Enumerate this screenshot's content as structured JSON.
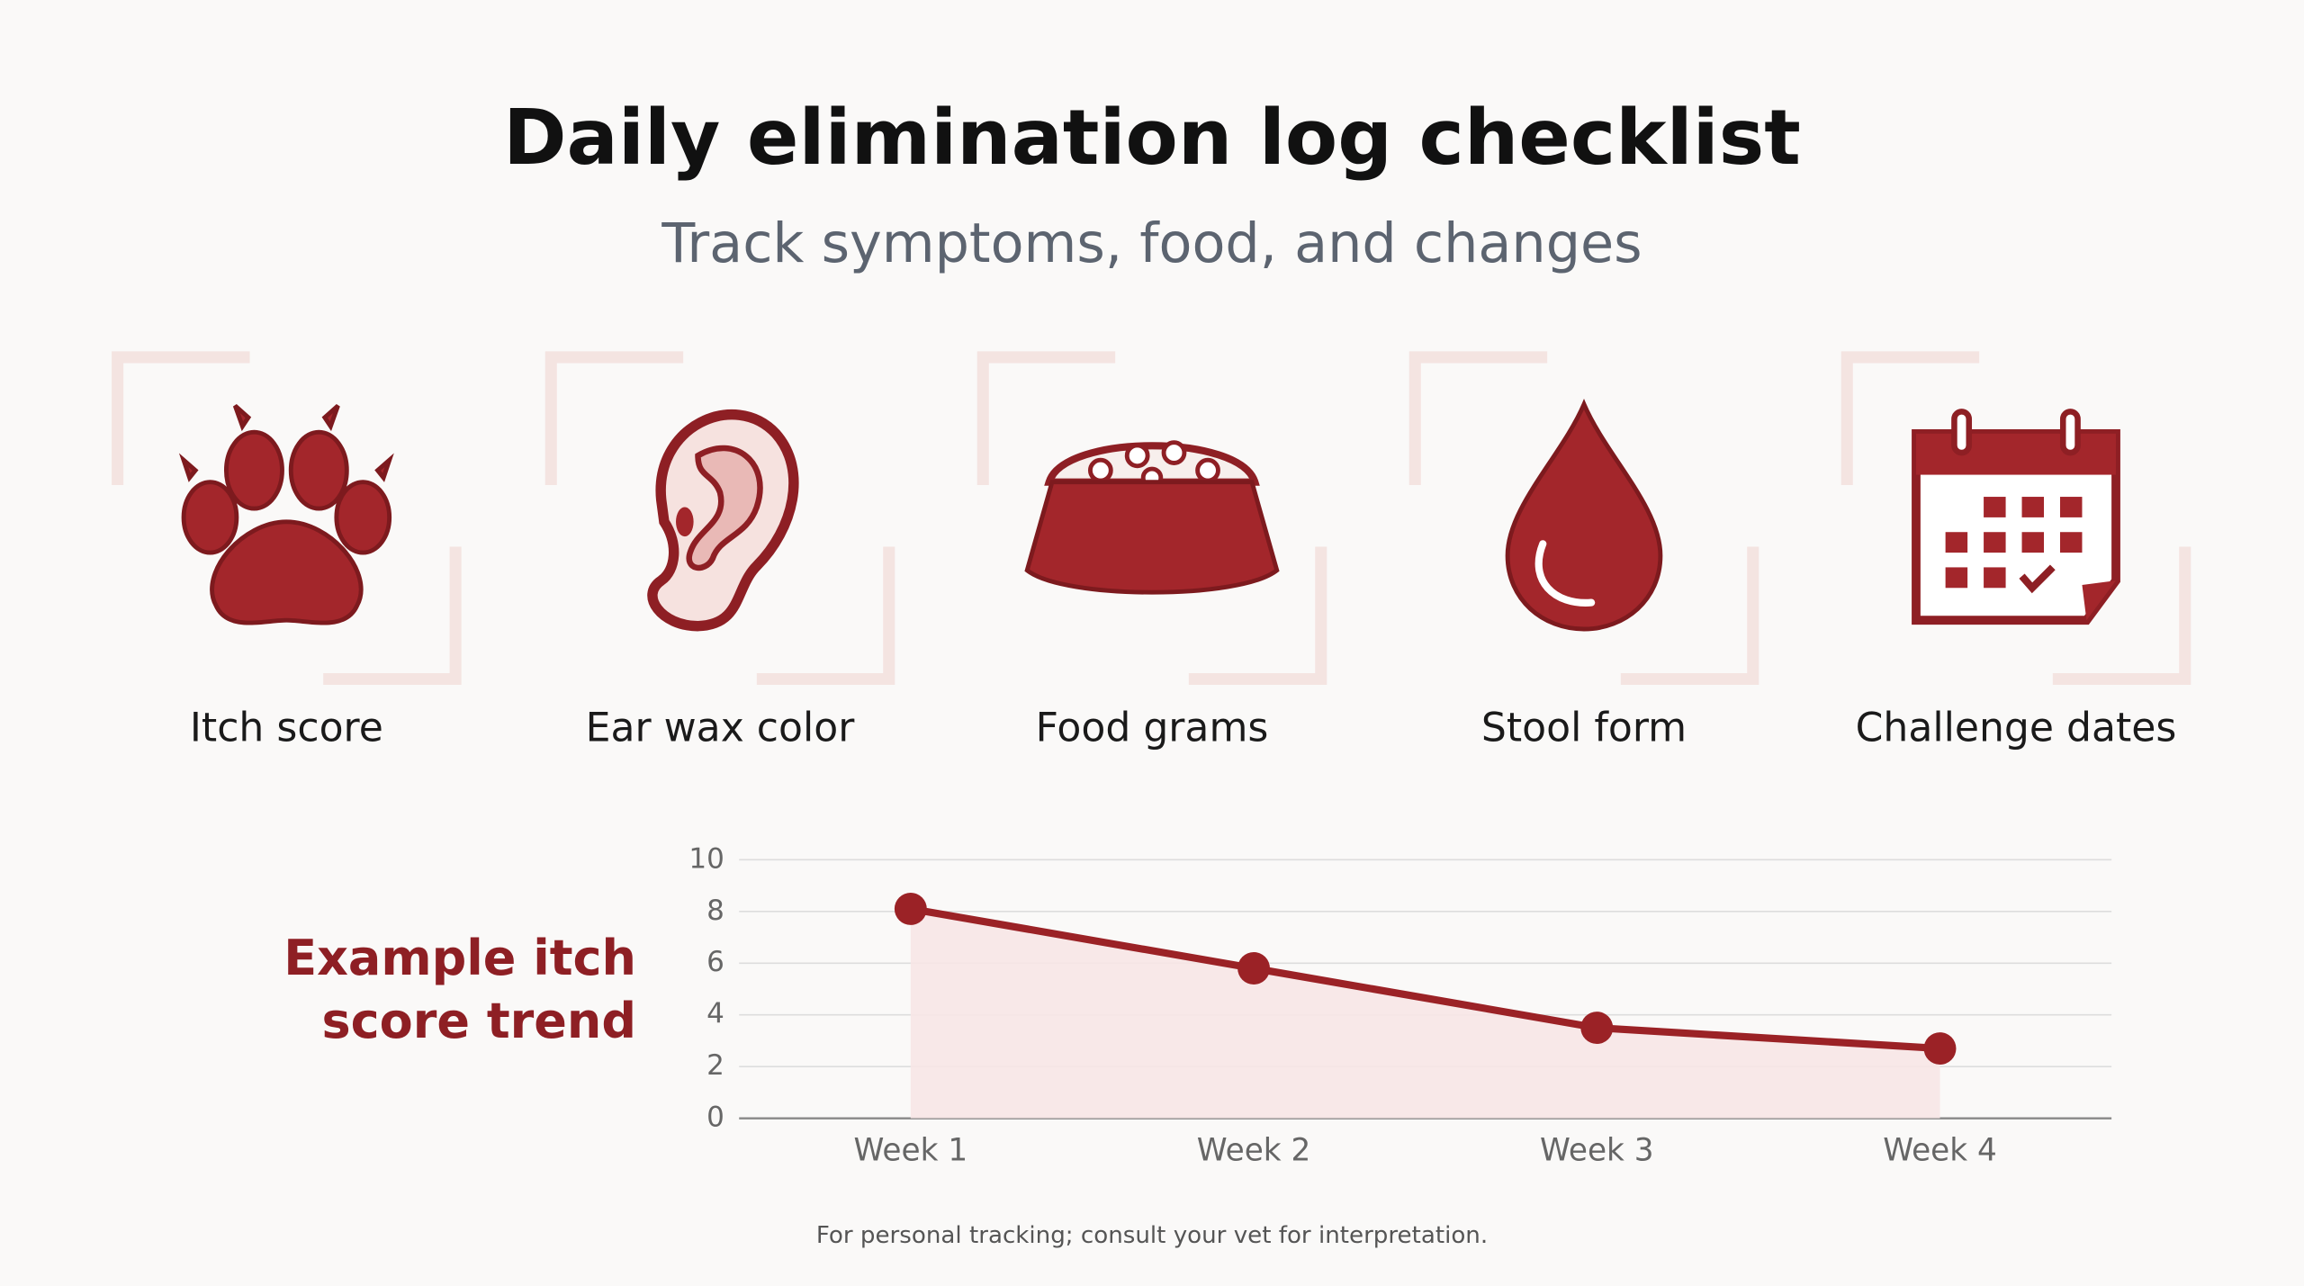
{
  "header": {
    "title": "Daily elimination log checklist",
    "subtitle": "Track symptoms, food, and changes"
  },
  "checklist": [
    "Itch score",
    "Ear wax color",
    "Food grams",
    "Stool form",
    "Challenge dates"
  ],
  "chart_data": {
    "type": "line",
    "title": "Example itch score trend",
    "categories": [
      "Week 1",
      "Week 2",
      "Week 3",
      "Week 4"
    ],
    "values": [
      8.1,
      5.8,
      3.5,
      2.7
    ],
    "color": "#9b2226",
    "area": true,
    "ylim": [
      0,
      10
    ],
    "yticks": [
      0,
      2,
      4,
      6,
      8,
      10
    ],
    "grid": true
  },
  "footer": {
    "note": "For personal tracking; consult your vet for interpretation."
  }
}
